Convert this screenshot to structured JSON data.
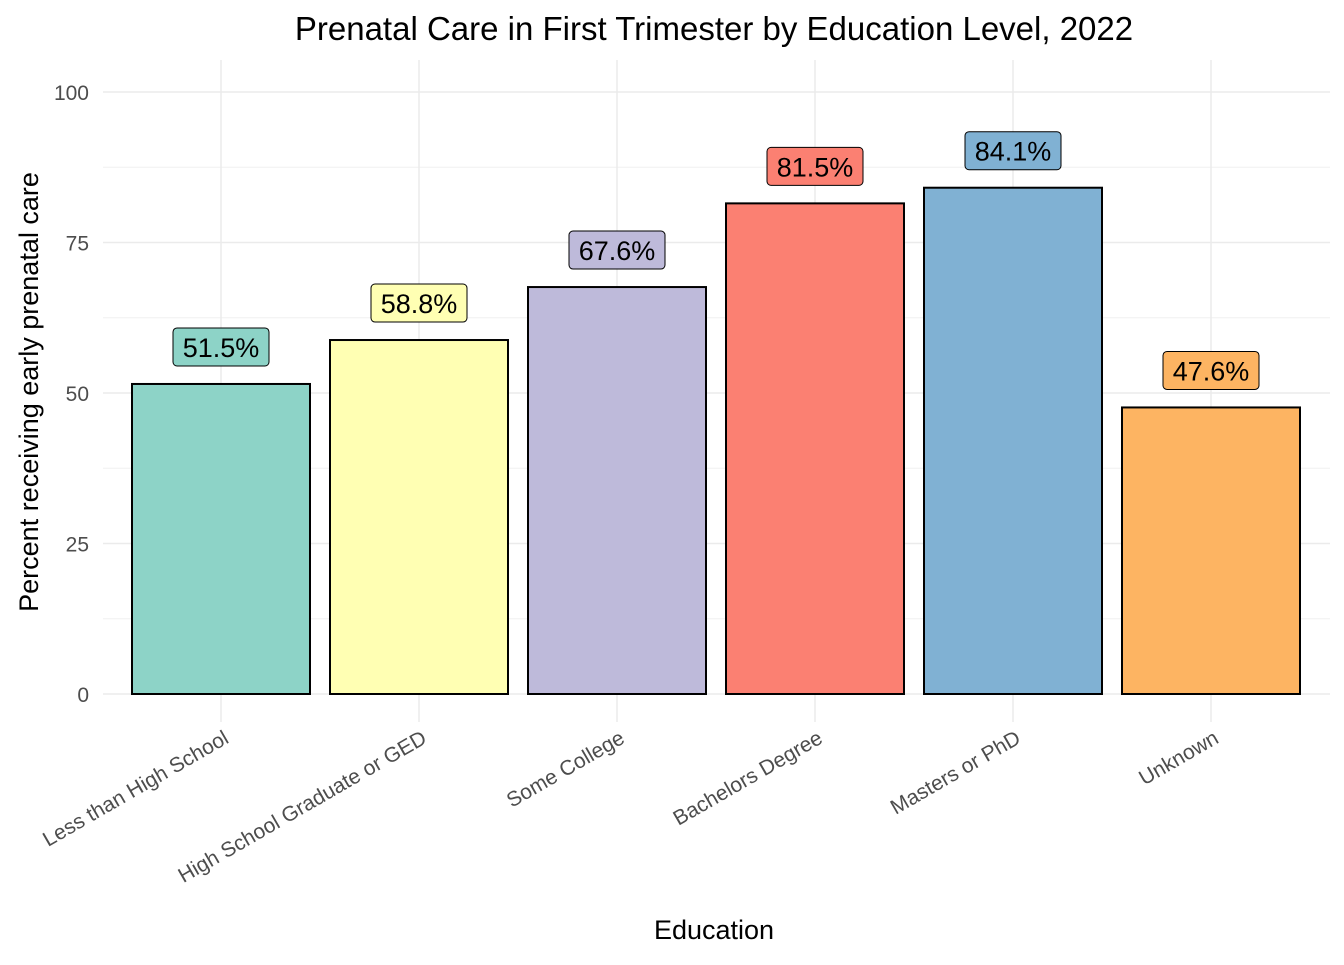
{
  "chart_data": {
    "type": "bar",
    "title": "Prenatal Care in First Trimester by Education Level, 2022",
    "xlabel": "Education",
    "ylabel": "Percent receiving early prenatal care",
    "categories": [
      "Less than High School",
      "High School Graduate or GED",
      "Some College",
      "Bachelors Degree",
      "Masters or PhD",
      "Unknown"
    ],
    "values": [
      51.5,
      58.8,
      67.6,
      81.5,
      84.1,
      47.6
    ],
    "data_labels": [
      "51.5%",
      "58.8%",
      "67.6%",
      "81.5%",
      "84.1%",
      "47.6%"
    ],
    "colors": [
      "#8DD3C7",
      "#FFFFB3",
      "#BEBADA",
      "#FB8072",
      "#80B1D3",
      "#FDB462"
    ],
    "ylim": [
      0,
      100
    ],
    "yticks": [
      0,
      25,
      50,
      75,
      100
    ],
    "grid": true,
    "legend": "none"
  }
}
